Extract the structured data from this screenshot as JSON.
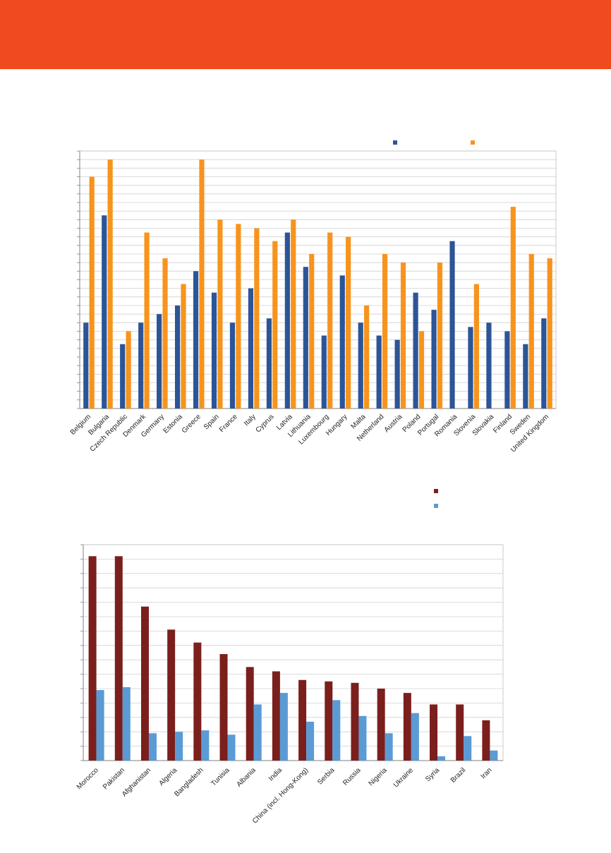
{
  "header": {
    "color": "#f04b1f"
  },
  "charts": [
    {
      "type": "bar",
      "categories": [
        "Belgium",
        "Bulgaria",
        "Czech Republic",
        "Denmark",
        "Germany",
        "Estonia",
        "Greece",
        "Spain",
        "France",
        "Italy",
        "Cyprus",
        "Latvia",
        "Lithuania",
        "Luxembourg",
        "Hungary",
        "Malta",
        "Netherland",
        "Austria",
        "Poland",
        "Portugal",
        "Romania",
        "Slovenia",
        "Slovakia",
        "Finland",
        "Sweden",
        "United Kingdom"
      ],
      "series": [
        {
          "color": "#2c5597",
          "values": [
            20,
            45,
            15,
            20,
            22,
            24,
            32,
            27,
            20,
            28,
            21,
            41,
            33,
            17,
            31,
            20,
            17,
            16,
            27,
            23,
            39,
            19,
            20,
            18,
            15,
            21
          ]
        },
        {
          "color": "#f7941d",
          "values": [
            54,
            58,
            18,
            41,
            35,
            29,
            58,
            44,
            43,
            42,
            39,
            44,
            36,
            41,
            40,
            24,
            36,
            34,
            18,
            34,
            0,
            29,
            0,
            47,
            36,
            35
          ]
        }
      ],
      "ylim": [
        0,
        60
      ],
      "yticks": 30,
      "grid": true,
      "legend": "top-right"
    },
    {
      "type": "bar",
      "categories": [
        "Morocco",
        "Pakistan",
        "Afghanistan",
        "Algeria",
        "Bangladesh",
        "Tunisia",
        "Albania",
        "India",
        "China (incl. Hong-Kong)",
        "Serbia",
        "Russia",
        "Nigeria",
        "Ukraine",
        "Syria",
        "Brazil",
        "Iran"
      ],
      "series": [
        {
          "color": "#7b1f1d",
          "values": [
            142,
            142,
            107,
            91,
            82,
            74,
            65,
            62,
            56,
            55,
            54,
            50,
            47,
            39,
            39,
            28
          ]
        },
        {
          "color": "#5b9bd5",
          "values": [
            49,
            51,
            19,
            20,
            21,
            18,
            39,
            47,
            27,
            42,
            31,
            19,
            33,
            3,
            17,
            7
          ]
        }
      ],
      "ylim": [
        0,
        150
      ],
      "yticks": 15,
      "grid": true,
      "legend": "top-right"
    }
  ]
}
